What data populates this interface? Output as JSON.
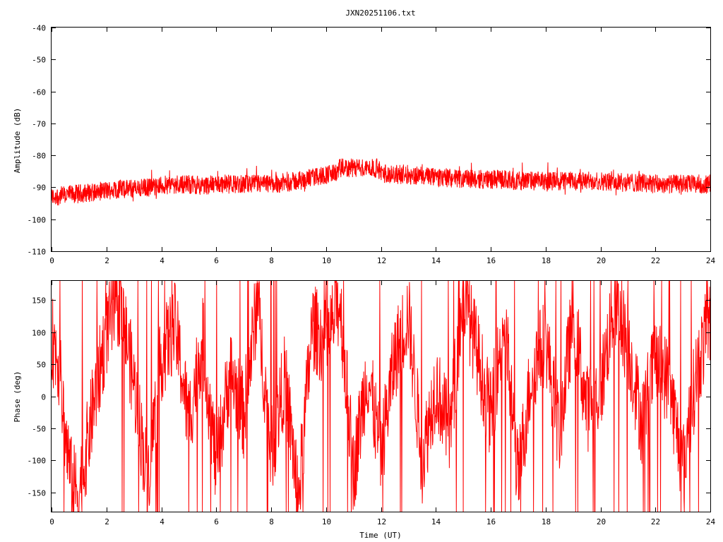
{
  "title": "JXN20251106.txt",
  "colors": {
    "trace": "#ff0000",
    "frame": "#000000",
    "background": "#ffffff"
  },
  "chart_data": [
    {
      "type": "line",
      "title": "JXN20251106.txt",
      "xlabel": "",
      "ylabel": "Amplitude (dB)",
      "xlim": [
        0,
        24
      ],
      "ylim": [
        -110,
        -40
      ],
      "xticks": [
        0,
        2,
        4,
        6,
        8,
        10,
        12,
        14,
        16,
        18,
        20,
        22,
        24
      ],
      "xtick_labels": [
        "0",
        "2",
        "4",
        "6",
        "8",
        "10",
        "12",
        "14",
        "16",
        "18",
        "20",
        "22",
        "24"
      ],
      "yticks": [
        -110,
        -100,
        -90,
        -80,
        -70,
        -60,
        -50,
        -40
      ],
      "ytick_labels": [
        "-110",
        "-100",
        "-90",
        "-80",
        "-70",
        "-60",
        "-50",
        "-40"
      ],
      "grid": false,
      "series": [
        {
          "color": "#ff0000",
          "x": [
            0,
            0.5,
            1,
            1.5,
            2,
            2.5,
            3,
            3.5,
            4,
            4.5,
            5,
            5.5,
            6,
            6.5,
            7,
            7.5,
            8,
            8.5,
            9,
            9.5,
            10,
            10.4,
            10.5,
            11,
            11.5,
            11.9,
            12,
            12.5,
            13,
            13.5,
            14,
            14.5,
            15,
            15.5,
            16,
            16.5,
            17,
            17.5,
            18,
            18.5,
            19,
            19.5,
            20,
            20.5,
            21,
            21.5,
            22,
            22.5,
            23,
            23.5,
            24
          ],
          "y": [
            -93,
            -92.5,
            -92,
            -91.5,
            -91,
            -90.5,
            -90.5,
            -90,
            -89.5,
            -89,
            -89,
            -89.5,
            -89,
            -89,
            -89,
            -89,
            -89,
            -88.5,
            -88,
            -87,
            -86,
            -85.5,
            -84,
            -84,
            -84,
            -84,
            -85.5,
            -86,
            -86,
            -86.5,
            -87,
            -87,
            -87.5,
            -87.5,
            -87.5,
            -87.5,
            -88,
            -88,
            -88,
            -88,
            -88,
            -88,
            -88,
            -88.5,
            -88.5,
            -88.5,
            -89,
            -89,
            -89,
            -89,
            -89
          ],
          "band_dB": 3
        }
      ]
    },
    {
      "type": "line",
      "title": "",
      "xlabel": "Time (UT)",
      "ylabel": "Phase (deg)",
      "xlim": [
        0,
        24
      ],
      "ylim": [
        -180,
        180
      ],
      "xticks": [
        0,
        2,
        4,
        6,
        8,
        10,
        12,
        14,
        16,
        18,
        20,
        22,
        24
      ],
      "xtick_labels": [
        "0",
        "2",
        "4",
        "6",
        "8",
        "10",
        "12",
        "14",
        "16",
        "18",
        "20",
        "22",
        "24"
      ],
      "yticks": [
        -150,
        -100,
        -50,
        0,
        50,
        100,
        150
      ],
      "ytick_labels": [
        "-150",
        "-100",
        "-50",
        "0",
        "50",
        "100",
        "150"
      ],
      "grid": false,
      "series": [
        {
          "color": "#ff0000",
          "x": [
            0,
            0.25,
            0.5,
            0.75,
            1,
            1.25,
            1.5,
            1.75,
            2,
            2.5,
            3,
            3.5,
            4,
            4.5,
            5,
            5.5,
            6,
            6.5,
            7,
            7.5,
            8,
            8.5,
            9,
            9.5,
            10,
            10.5,
            11,
            11.5,
            12,
            12.5,
            13,
            13.5,
            14,
            14.5,
            15,
            15.5,
            16,
            16.5,
            17,
            17.5,
            18,
            18.5,
            19,
            19.5,
            20,
            20.5,
            21,
            21.5,
            22,
            22.5,
            23,
            23.5,
            24
          ],
          "y": [
            90,
            60,
            -60,
            -140,
            -150,
            -90,
            -20,
            40,
            100,
            150,
            20,
            -130,
            60,
            110,
            -40,
            90,
            -110,
            40,
            -30,
            150,
            -90,
            30,
            -160,
            110,
            80,
            150,
            -120,
            40,
            -90,
            60,
            130,
            -100,
            20,
            -60,
            160,
            70,
            -30,
            120,
            -130,
            40,
            90,
            -60,
            130,
            -20,
            10,
            150,
            80,
            -40,
            60,
            20,
            -110,
            40,
            120
          ]
        }
      ]
    }
  ]
}
